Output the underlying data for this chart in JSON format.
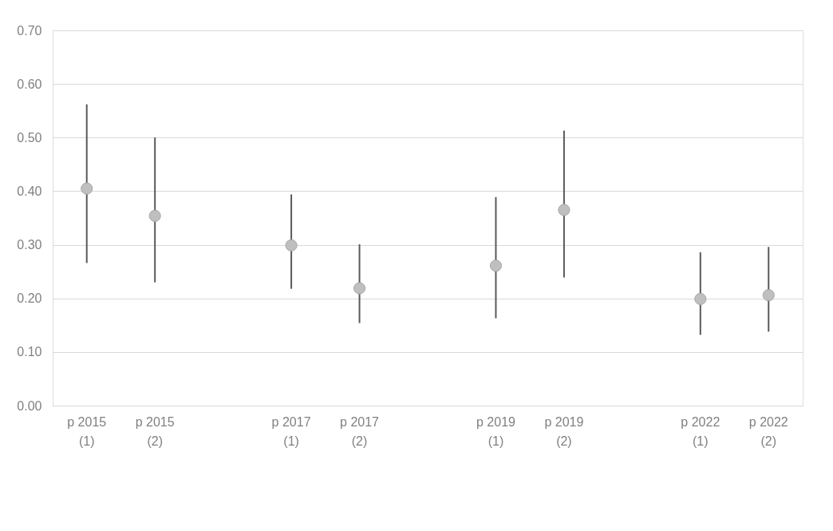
{
  "chart_data": {
    "type": "scatter",
    "categories": [
      "p 2015 (1)",
      "p 2015 (2)",
      null,
      "p 2017 (1)",
      "p 2017 (2)",
      null,
      "p 2019 (1)",
      "p 2019 (2)",
      null,
      "p 2022 (1)",
      "p 2022 (2)"
    ],
    "series": [
      {
        "color": "#bfbfbf",
        "values": [
          0.405,
          0.354,
          null,
          0.299,
          0.219,
          null,
          0.261,
          0.365,
          null,
          0.199,
          0.206
        ],
        "errors": [
          [
            0.266,
            0.562
          ],
          [
            0.23,
            0.5
          ],
          null,
          [
            0.218,
            0.394
          ],
          [
            0.154,
            0.301
          ],
          null,
          [
            0.163,
            0.389
          ],
          [
            0.239,
            0.513
          ],
          null,
          [
            0.132,
            0.286
          ],
          [
            0.138,
            0.296
          ]
        ]
      }
    ],
    "ylim": [
      0,
      0.7
    ],
    "yticks": [
      {
        "value": 0,
        "label": "0.00"
      },
      {
        "value": 0.1,
        "label": "0.10"
      },
      {
        "value": 0.2,
        "label": "0.20"
      },
      {
        "value": 0.3,
        "label": "0.30"
      },
      {
        "value": 0.4,
        "label": "0.40"
      },
      {
        "value": 0.5,
        "label": "0.50"
      },
      {
        "value": 0.6,
        "label": "0.60"
      },
      {
        "value": 0.7,
        "label": "0.70"
      }
    ],
    "grid": "y",
    "marker": "circle"
  }
}
